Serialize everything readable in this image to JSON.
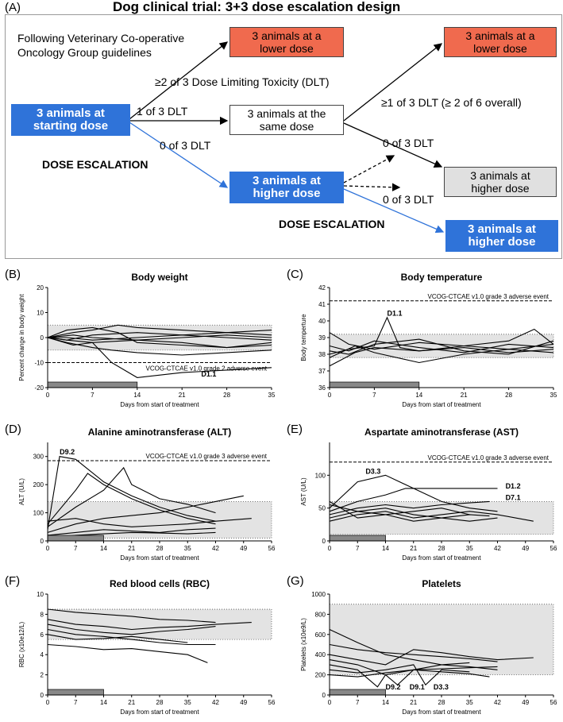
{
  "figure": {
    "panel_a_label": "(A)",
    "title": "Dog clinical trial: 3+3 dose escalation design",
    "guideline_text_line1": "Following Veterinary Co-operative",
    "guideline_text_line2": "Oncology Group guidelines",
    "boxes": {
      "start": [
        "3 animals at",
        "starting  dose"
      ],
      "lower1": [
        "3 animals at a",
        "lower dose"
      ],
      "same": [
        "3 animals at the",
        "same dose"
      ],
      "higher1": [
        "3 animals at",
        "higher dose"
      ],
      "lower2": [
        "3 animals at a",
        "lower dose"
      ],
      "higher_grey": [
        "3 animals at",
        "higher dose"
      ],
      "higher2": [
        "3 animals at",
        "higher dose"
      ]
    },
    "arrow_labels": {
      "dlt2of3": "≥2 of 3 Dose Limiting Toxicity (DLT)",
      "dlt1of3": "1 of 3 DLT",
      "dlt0of3_a": "0 of 3 DLT",
      "dlt1of3_overall": "≥1 of 3 DLT (≥ 2 of 6 overall)",
      "dlt0of3_b": "0 of 3 DLT",
      "dlt0of3_c": "0 of 3 DLT"
    },
    "dose_escalation_1": "DOSE ESCALATION",
    "dose_escalation_2": "DOSE ESCALATION"
  },
  "chart_data": [
    {
      "panel": "(B)",
      "type": "line",
      "title": "Body weight",
      "xlabel": "Days from start of treatment",
      "ylabel": "Percent change in body weight",
      "xlim": [
        0,
        35
      ],
      "ylim": [
        -20,
        20
      ],
      "xticks": [
        0,
        7,
        14,
        21,
        28,
        35
      ],
      "yticks": [
        -20,
        -10,
        0,
        10,
        20
      ],
      "normal_band": [
        -5,
        5
      ],
      "threshold": -10,
      "threshold_label": "VCOG-CTCAE v1.0 grade 2 adverse event",
      "treatment_bar": [
        0,
        14
      ],
      "annotations": [
        {
          "text": "D1.1",
          "x": 24,
          "y": -15.5
        }
      ],
      "series": [
        {
          "x": [
            0,
            3,
            7,
            10,
            14,
            21,
            28,
            35
          ],
          "y": [
            0,
            -1,
            -2,
            -10,
            -16,
            -14,
            -13,
            -12
          ]
        },
        {
          "x": [
            0,
            4,
            7,
            11,
            14,
            21,
            28,
            35
          ],
          "y": [
            0,
            2,
            3,
            5,
            4,
            3,
            2,
            3
          ]
        },
        {
          "x": [
            0,
            3,
            7,
            10,
            14,
            21,
            28,
            35
          ],
          "y": [
            0,
            -2,
            -4,
            -5,
            -6,
            -7,
            -6,
            -5
          ]
        },
        {
          "x": [
            0,
            4,
            7,
            14,
            21,
            28,
            35
          ],
          "y": [
            0,
            1,
            0,
            -1,
            0,
            1,
            0
          ]
        },
        {
          "x": [
            0,
            3,
            7,
            14,
            21,
            28,
            35
          ],
          "y": [
            0,
            -1,
            1,
            2,
            1,
            0,
            -1
          ]
        },
        {
          "x": [
            0,
            3,
            7,
            11,
            14,
            21,
            28,
            35
          ],
          "y": [
            0,
            3,
            4,
            2,
            -2,
            -3,
            -4,
            -3
          ]
        },
        {
          "x": [
            0,
            4,
            7,
            14,
            21,
            28,
            35
          ],
          "y": [
            0,
            -3,
            -2,
            -1,
            -2,
            -4,
            -2
          ]
        },
        {
          "x": [
            0,
            3,
            7,
            14,
            21,
            28,
            35
          ],
          "y": [
            0,
            0,
            -1,
            0,
            1,
            2,
            1
          ]
        }
      ]
    },
    {
      "panel": "(C)",
      "type": "line",
      "title": "Body temperature",
      "xlabel": "Days from start of treatment",
      "ylabel": "Body temperture",
      "xlim": [
        0,
        35
      ],
      "ylim": [
        36,
        42
      ],
      "xticks": [
        0,
        7,
        14,
        21,
        28,
        35
      ],
      "yticks": [
        36,
        37,
        38,
        39,
        40,
        41,
        42
      ],
      "normal_band": [
        37.8,
        39.2
      ],
      "threshold": 41.2,
      "threshold_label": "VCOG-CTCAE v1.0 grade 3 adverse event",
      "treatment_bar": [
        0,
        14
      ],
      "annotations": [
        {
          "text": "D1.1",
          "x": 9,
          "y": 40.3
        }
      ],
      "series": [
        {
          "x": [
            0,
            3,
            7,
            9,
            11,
            14,
            21,
            28,
            35
          ],
          "y": [
            38,
            38.3,
            38.5,
            40.2,
            38.4,
            38.2,
            38.5,
            38.3,
            38.6
          ]
        },
        {
          "x": [
            0,
            3,
            7,
            14,
            21,
            28,
            35
          ],
          "y": [
            38.5,
            38.2,
            38.8,
            38.4,
            38.1,
            38.6,
            38.4
          ]
        },
        {
          "x": [
            0,
            4,
            7,
            14,
            21,
            28,
            35
          ],
          "y": [
            37.8,
            38.5,
            38.1,
            37.5,
            38.0,
            38.3,
            38.1
          ]
        },
        {
          "x": [
            0,
            3,
            7,
            14,
            21,
            28,
            32,
            35
          ],
          "y": [
            39.3,
            38.6,
            38.3,
            38.7,
            38.5,
            38.8,
            39.5,
            38.6
          ]
        },
        {
          "x": [
            0,
            4,
            7,
            14,
            21,
            28,
            35
          ],
          "y": [
            37.3,
            38.1,
            38.4,
            38.2,
            38.4,
            38.1,
            38.3
          ]
        },
        {
          "x": [
            0,
            3,
            7,
            14,
            21,
            28,
            35
          ],
          "y": [
            38.2,
            38.0,
            38.6,
            38.9,
            38.2,
            38.0,
            38.8
          ]
        }
      ]
    },
    {
      "panel": "(D)",
      "type": "line",
      "title": "Alanine aminotransferase (ALT)",
      "xlabel": "Days from start of treatment",
      "ylabel": "ALT (U/L)",
      "xlim": [
        0,
        56
      ],
      "ylim": [
        0,
        350
      ],
      "xticks": [
        0,
        7,
        14,
        21,
        28,
        35,
        42,
        49,
        56
      ],
      "yticks": [
        0,
        100,
        200,
        300
      ],
      "normal_band": [
        10,
        140
      ],
      "threshold": 285,
      "threshold_label": "VCOG-CTCAE v1.0 grade 3 adverse event",
      "treatment_bar": [
        0,
        14
      ],
      "annotations": [
        {
          "text": "D9.2",
          "x": 3,
          "y": 308
        }
      ],
      "series": [
        {
          "x": [
            0,
            3,
            7,
            14,
            21,
            28,
            35,
            42
          ],
          "y": [
            40,
            300,
            290,
            210,
            160,
            120,
            90,
            70
          ]
        },
        {
          "x": [
            0,
            7,
            10,
            14,
            21,
            28,
            35,
            42
          ],
          "y": [
            60,
            180,
            240,
            200,
            150,
            110,
            80,
            60
          ]
        },
        {
          "x": [
            0,
            7,
            14,
            19,
            21,
            28,
            35,
            42
          ],
          "y": [
            50,
            120,
            180,
            260,
            200,
            150,
            130,
            100
          ]
        },
        {
          "x": [
            0,
            7,
            14,
            21,
            28,
            35,
            42,
            49
          ],
          "y": [
            30,
            60,
            80,
            90,
            100,
            120,
            140,
            160
          ]
        },
        {
          "x": [
            0,
            7,
            14,
            21,
            28,
            35,
            42
          ],
          "y": [
            20,
            30,
            40,
            35,
            30,
            40,
            45
          ]
        },
        {
          "x": [
            0,
            7,
            14,
            21,
            28,
            35,
            42,
            51
          ],
          "y": [
            70,
            80,
            60,
            50,
            55,
            60,
            70,
            80
          ]
        },
        {
          "x": [
            0,
            7,
            14,
            21,
            28,
            35,
            42
          ],
          "y": [
            10,
            20,
            25,
            30,
            28,
            25,
            30
          ]
        }
      ]
    },
    {
      "panel": "(E)",
      "type": "line",
      "title": "Aspartate aminotransferase (AST)",
      "xlabel": "Days from start of treatment",
      "ylabel": "AST (U/L)",
      "xlim": [
        0,
        56
      ],
      "ylim": [
        0,
        150
      ],
      "xticks": [
        0,
        7,
        14,
        21,
        28,
        35,
        42,
        49,
        56
      ],
      "yticks": [
        0,
        50,
        100
      ],
      "normal_band": [
        10,
        60
      ],
      "threshold": 120,
      "threshold_label": "VCOG-CTCAE v1.0 grade 3 adverse event",
      "treatment_bar": [
        0,
        14
      ],
      "annotations": [
        {
          "text": "D3.3",
          "x": 9,
          "y": 102
        },
        {
          "text": "D1.2",
          "x": 44,
          "y": 80
        },
        {
          "text": "D7.1",
          "x": 44,
          "y": 62
        }
      ],
      "series": [
        {
          "x": [
            0,
            7,
            14,
            21,
            28,
            35,
            42
          ],
          "y": [
            50,
            90,
            100,
            80,
            60,
            50,
            45
          ]
        },
        {
          "x": [
            0,
            7,
            14,
            19,
            28,
            35,
            42
          ],
          "y": [
            45,
            60,
            70,
            80,
            80,
            80,
            80
          ]
        },
        {
          "x": [
            0,
            7,
            14,
            21,
            28,
            35,
            40
          ],
          "y": [
            40,
            50,
            55,
            50,
            55,
            58,
            60
          ]
        },
        {
          "x": [
            0,
            7,
            14,
            21,
            28,
            35,
            42,
            51
          ],
          "y": [
            30,
            40,
            45,
            35,
            40,
            45,
            40,
            30
          ]
        },
        {
          "x": [
            0,
            7,
            14,
            21,
            28,
            35,
            42
          ],
          "y": [
            55,
            45,
            50,
            40,
            35,
            30,
            35
          ]
        },
        {
          "x": [
            0,
            7,
            14,
            21,
            28,
            35
          ],
          "y": [
            60,
            35,
            40,
            45,
            50,
            40
          ]
        },
        {
          "x": [
            0,
            7,
            14,
            21,
            28,
            35,
            40
          ],
          "y": [
            35,
            45,
            40,
            30,
            35,
            40,
            38
          ]
        }
      ]
    },
    {
      "panel": "(F)",
      "type": "line",
      "title": "Red blood cells (RBC)",
      "xlabel": "Days from start of treatment",
      "ylabel": "RBC (x10e12/L)",
      "xlim": [
        0,
        56
      ],
      "ylim": [
        0,
        10
      ],
      "xticks": [
        0,
        7,
        14,
        21,
        28,
        35,
        42,
        49,
        56
      ],
      "yticks": [
        0,
        2,
        4,
        6,
        8,
        10
      ],
      "normal_band": [
        5.5,
        8.5
      ],
      "treatment_bar": [
        0,
        14
      ],
      "series": [
        {
          "x": [
            0,
            7,
            14,
            21,
            28,
            35,
            42
          ],
          "y": [
            8.5,
            8.2,
            8.0,
            7.8,
            7.5,
            7.4,
            7.2
          ]
        },
        {
          "x": [
            0,
            7,
            14,
            21,
            28,
            35,
            42,
            51
          ],
          "y": [
            7.5,
            7.0,
            6.8,
            6.5,
            6.7,
            6.8,
            7.0,
            7.2
          ]
        },
        {
          "x": [
            0,
            7,
            14,
            21,
            28,
            35,
            42
          ],
          "y": [
            6.5,
            6.0,
            5.8,
            5.5,
            5.2,
            5.0,
            5.0
          ]
        },
        {
          "x": [
            0,
            7,
            14,
            21,
            28,
            35,
            40
          ],
          "y": [
            5.0,
            4.8,
            4.5,
            4.6,
            4.3,
            4.0,
            3.2
          ]
        },
        {
          "x": [
            0,
            7,
            14,
            21,
            28,
            35,
            42
          ],
          "y": [
            7.0,
            6.5,
            6.2,
            6.0,
            6.3,
            6.5,
            6.8
          ]
        },
        {
          "x": [
            0,
            7,
            14,
            21,
            28,
            35
          ],
          "y": [
            6.0,
            5.5,
            5.6,
            5.8,
            5.5,
            5.2
          ]
        }
      ]
    },
    {
      "panel": "(G)",
      "type": "line",
      "title": "Platelets",
      "xlabel": "Days from start of treatment",
      "ylabel": "Platelets (x10e9/L)",
      "xlim": [
        0,
        56
      ],
      "ylim": [
        0,
        1000
      ],
      "xticks": [
        0,
        7,
        14,
        21,
        28,
        35,
        42,
        49,
        56
      ],
      "yticks": [
        0,
        200,
        400,
        600,
        800,
        1000
      ],
      "normal_band": [
        200,
        900
      ],
      "treatment_bar": [
        0,
        14
      ],
      "annotations": [
        {
          "text": "D9.2",
          "x": 14,
          "y": 55
        },
        {
          "text": "D9.1",
          "x": 20,
          "y": 55
        },
        {
          "text": "D3.3",
          "x": 26,
          "y": 55
        }
      ],
      "series": [
        {
          "x": [
            0,
            7,
            14,
            21,
            28,
            35,
            42
          ],
          "y": [
            650,
            520,
            400,
            350,
            300,
            280,
            250
          ]
        },
        {
          "x": [
            0,
            7,
            14,
            21,
            28,
            35,
            42,
            51
          ],
          "y": [
            400,
            350,
            300,
            450,
            420,
            380,
            350,
            370
          ]
        },
        {
          "x": [
            0,
            7,
            12,
            14,
            21,
            28,
            35,
            42
          ],
          "y": [
            300,
            250,
            80,
            200,
            250,
            260,
            270,
            280
          ]
        },
        {
          "x": [
            0,
            7,
            14,
            17,
            21,
            28,
            35
          ],
          "y": [
            350,
            300,
            200,
            100,
            250,
            300,
            320
          ]
        },
        {
          "x": [
            0,
            7,
            14,
            21,
            24,
            28,
            35
          ],
          "y": [
            250,
            220,
            250,
            300,
            100,
            250,
            230
          ]
        },
        {
          "x": [
            0,
            7,
            14,
            21,
            28,
            35,
            40
          ],
          "y": [
            200,
            180,
            220,
            250,
            230,
            210,
            180
          ]
        },
        {
          "x": [
            0,
            7,
            14,
            21,
            28,
            35,
            42
          ],
          "y": [
            500,
            450,
            420,
            400,
            380,
            360,
            330
          ]
        }
      ]
    }
  ]
}
